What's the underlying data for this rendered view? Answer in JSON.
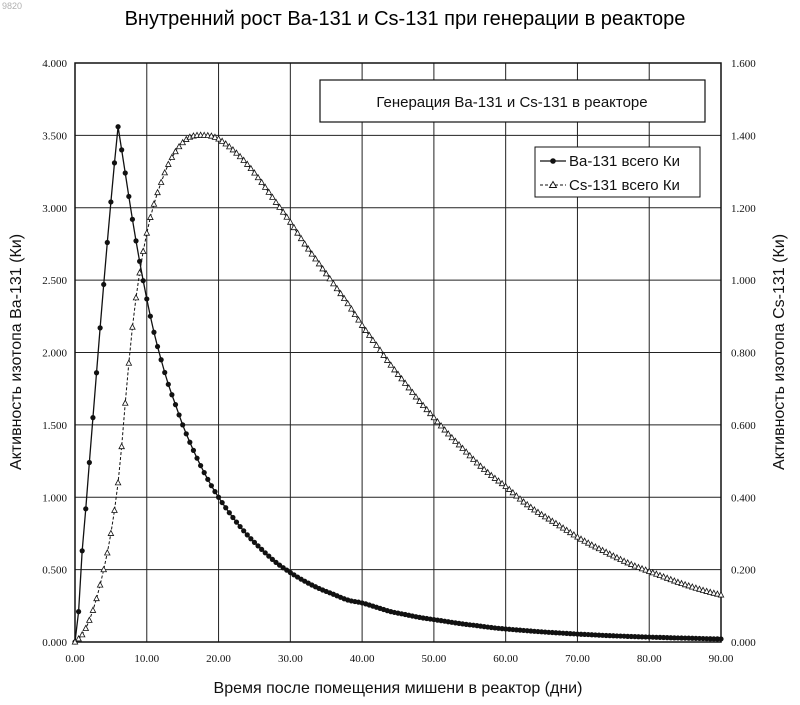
{
  "watermark": "9820",
  "chart_data": {
    "type": "line",
    "title": "Внутренний рост Ba-131 и Cs-131 при генерации в реакторе",
    "annotation": "Генерация Ba-131 и Cs-131 в реакторе",
    "xlabel": "Время после помещения мишени в реактор (дни)",
    "ylabel_left": "Активность изотопа Ba-131 (Ки)",
    "ylabel_right": "Активность изотопа Cs-131 (Ки)",
    "xlim": [
      0,
      90
    ],
    "ylim_left": [
      0,
      4
    ],
    "ylim_right": [
      0,
      1.6
    ],
    "x_ticks": [
      "0.00",
      "10.00",
      "20.00",
      "30.00",
      "40.00",
      "50.00",
      "60.00",
      "70.00",
      "80.00",
      "90.00"
    ],
    "y_left_ticks": [
      "0.000",
      "0.500",
      "1.000",
      "1.500",
      "2.000",
      "2.500",
      "3.000",
      "3.500",
      "4.000"
    ],
    "y_right_ticks": [
      "0.000",
      "0.200",
      "0.400",
      "0.600",
      "0.800",
      "1.000",
      "1.200",
      "1.400",
      "1.600"
    ],
    "grid": true,
    "legend_position": "top-right",
    "series": [
      {
        "name": "Ba-131 всего Ки",
        "axis": "left",
        "marker": "filled-circle",
        "x": [
          0,
          0.5,
          1,
          1.5,
          2,
          2.5,
          3,
          3.5,
          4,
          4.5,
          5,
          5.5,
          6,
          6.5,
          7,
          8,
          9,
          10,
          11,
          12,
          13,
          14,
          15,
          16,
          17,
          18,
          19,
          20,
          22,
          24,
          26,
          28,
          30,
          32,
          34,
          36,
          38,
          40,
          42,
          44,
          46,
          48,
          50,
          52,
          54,
          56,
          58,
          60,
          62,
          64,
          66,
          68,
          70,
          72,
          74,
          76,
          78,
          80,
          82,
          84,
          86,
          88,
          90
        ],
        "y": [
          0,
          0.21,
          0.63,
          0.92,
          1.24,
          1.55,
          1.86,
          2.17,
          2.47,
          2.76,
          3.04,
          3.31,
          3.56,
          3.4,
          3.24,
          2.92,
          2.63,
          2.37,
          2.14,
          1.95,
          1.78,
          1.64,
          1.5,
          1.38,
          1.27,
          1.17,
          1.08,
          1.0,
          0.86,
          0.74,
          0.64,
          0.55,
          0.48,
          0.42,
          0.37,
          0.33,
          0.29,
          0.27,
          0.24,
          0.21,
          0.19,
          0.17,
          0.155,
          0.14,
          0.125,
          0.113,
          0.1,
          0.09,
          0.082,
          0.074,
          0.067,
          0.061,
          0.055,
          0.05,
          0.045,
          0.041,
          0.037,
          0.034,
          0.031,
          0.028,
          0.026,
          0.023,
          0.021
        ]
      },
      {
        "name": "Cs-131 всего Ки",
        "axis": "right",
        "marker": "open-triangle",
        "x": [
          0,
          1,
          2,
          3,
          4,
          5,
          6,
          6.5,
          7,
          8,
          9,
          10,
          11,
          12,
          13,
          14,
          15,
          16,
          17,
          18,
          19,
          20,
          22,
          24,
          26,
          28,
          30,
          32,
          34,
          36,
          38,
          40,
          42,
          44,
          46,
          48,
          50,
          52,
          54,
          56,
          58,
          60,
          62,
          64,
          66,
          68,
          70,
          72,
          74,
          76,
          78,
          80,
          82,
          84,
          86,
          88,
          90
        ],
        "y": [
          0,
          0.02,
          0.06,
          0.12,
          0.2,
          0.3,
          0.44,
          0.54,
          0.66,
          0.87,
          1.02,
          1.13,
          1.21,
          1.27,
          1.32,
          1.355,
          1.38,
          1.395,
          1.4,
          1.4,
          1.398,
          1.39,
          1.36,
          1.32,
          1.27,
          1.215,
          1.16,
          1.1,
          1.045,
          0.99,
          0.935,
          0.875,
          0.82,
          0.765,
          0.715,
          0.665,
          0.62,
          0.575,
          0.535,
          0.495,
          0.46,
          0.43,
          0.395,
          0.365,
          0.34,
          0.315,
          0.29,
          0.268,
          0.248,
          0.228,
          0.21,
          0.195,
          0.18,
          0.165,
          0.152,
          0.14,
          0.13
        ]
      }
    ]
  }
}
